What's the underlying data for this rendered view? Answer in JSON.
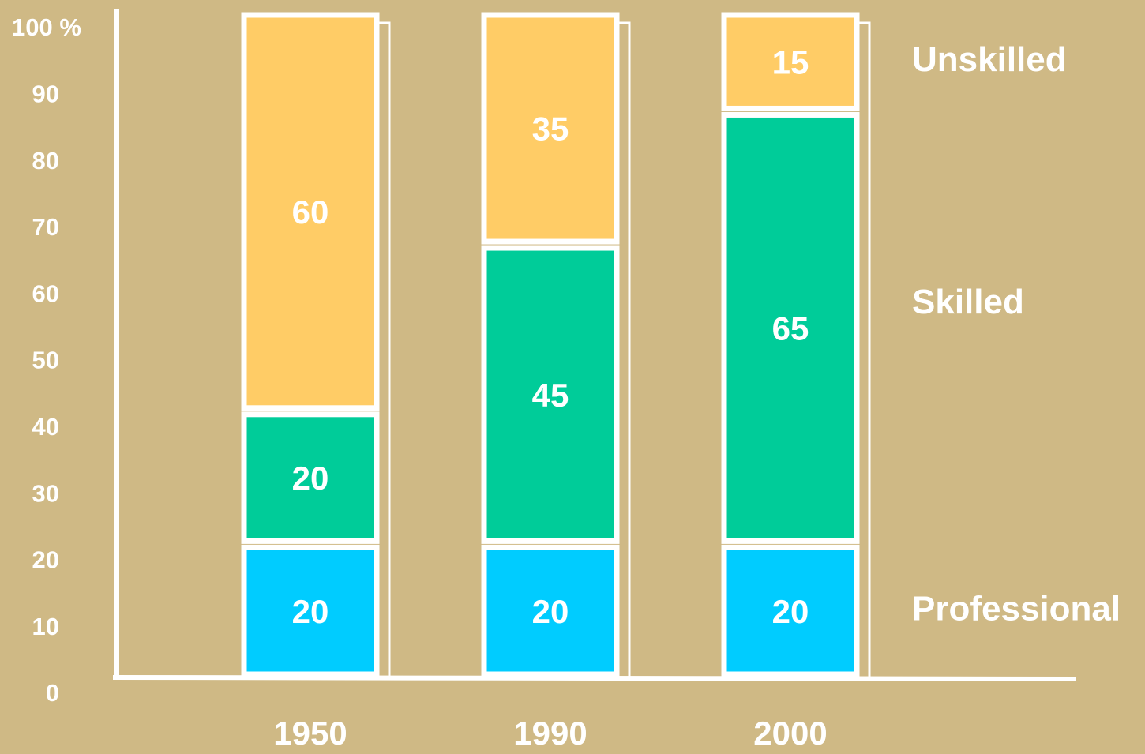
{
  "chart_data": {
    "type": "stacked_bar",
    "categories": [
      "1950",
      "1990",
      "2000"
    ],
    "series": [
      {
        "name": "Professional",
        "color": "#00ccff",
        "values": [
          20,
          20,
          20
        ]
      },
      {
        "name": "Skilled",
        "color": "#00cc99",
        "values": [
          20,
          45,
          65
        ]
      },
      {
        "name": "Unskilled",
        "color": "#ffcc66",
        "values": [
          60,
          35,
          15
        ]
      }
    ],
    "ylim": [
      0,
      100
    ],
    "yticks": [
      0,
      10,
      20,
      30,
      40,
      50,
      60,
      70,
      80,
      90,
      {
        "value": 100,
        "label": "100 %"
      }
    ],
    "grid": false
  }
}
